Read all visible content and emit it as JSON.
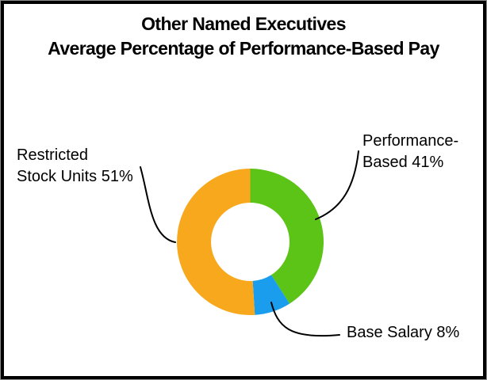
{
  "header": {
    "line1": "Other Named Executives",
    "line2": "Average Percentage of Performance-Based Pay"
  },
  "chart_data": {
    "type": "pie",
    "subtype": "donut",
    "title": "Other Named Executives Average Percentage of Performance-Based Pay",
    "slices": [
      {
        "label": "Performance-Based",
        "value": 41,
        "unit": "%",
        "color": "#5cc317"
      },
      {
        "label": "Base Salary",
        "value": 8,
        "unit": "%",
        "color": "#1a9ded"
      },
      {
        "label": "Restricted Stock Units",
        "value": 51,
        "unit": "%",
        "color": "#f7a81d"
      }
    ],
    "start_angle_deg": -90,
    "direction": "clockwise",
    "donut_hole_ratio": 0.535,
    "legend_position": "none",
    "label_style": "callout-lines"
  },
  "callouts": {
    "restricted": {
      "line1": "Restricted",
      "line2": "Stock Units 51%"
    },
    "performance": {
      "line1": "Performance-",
      "line2": "Based 41%"
    },
    "base": {
      "text": "Base Salary 8%"
    }
  },
  "colors": {
    "leader_line": "#000000",
    "border": "#000000",
    "background": "#ffffff",
    "text": "#000000"
  }
}
